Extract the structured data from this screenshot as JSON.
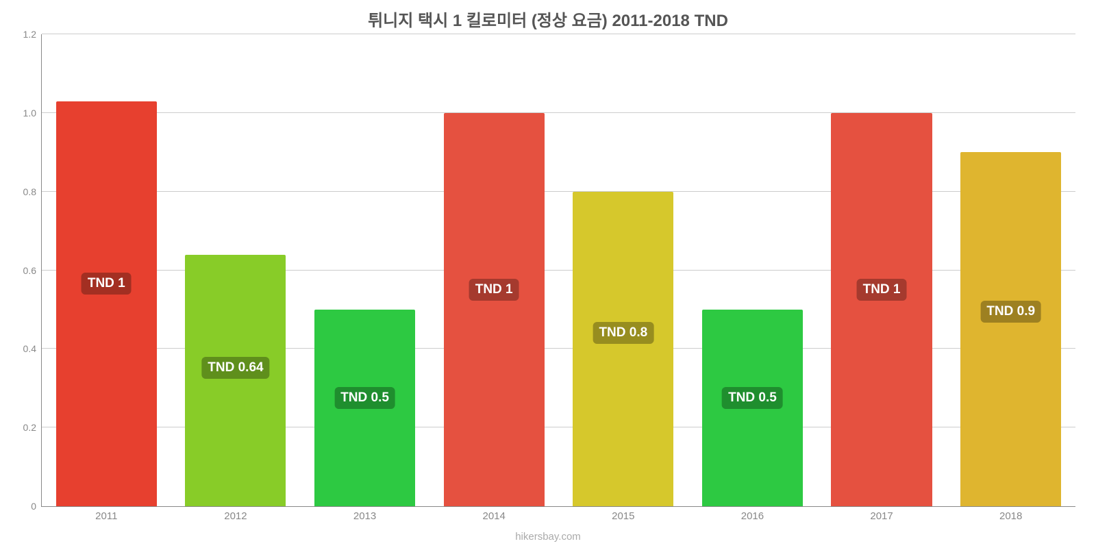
{
  "chart": {
    "type": "bar",
    "title": "튀니지 택시 1 킬로미터 (정상 요금) 2011-2018 TND",
    "title_fontsize": 24,
    "title_color": "#555555",
    "background_color": "#ffffff",
    "grid_color": "#cccccc",
    "axis_color": "#888888",
    "tick_fontsize": 14,
    "tick_color": "#888888",
    "ylim": [
      0,
      1.2
    ],
    "ytick_step": 0.2,
    "yticks": [
      {
        "v": 0,
        "label": "0"
      },
      {
        "v": 0.2,
        "label": "0.2"
      },
      {
        "v": 0.4,
        "label": "0.4"
      },
      {
        "v": 0.6,
        "label": "0.6"
      },
      {
        "v": 0.8,
        "label": "0.8"
      },
      {
        "v": 1.0,
        "label": "1.0"
      },
      {
        "v": 1.2,
        "label": "1.2"
      }
    ],
    "categories": [
      "2011",
      "2012",
      "2013",
      "2014",
      "2015",
      "2016",
      "2017",
      "2018"
    ],
    "values": [
      1.03,
      0.64,
      0.5,
      1.0,
      0.8,
      0.5,
      1.0,
      0.9
    ],
    "bar_colors": [
      "#e7402f",
      "#88cc28",
      "#2dc942",
      "#e55140",
      "#d6c82c",
      "#2dc942",
      "#e55140",
      "#dfb52f"
    ],
    "bar_labels": [
      "TND 1",
      "TND 0.64",
      "TND 0.5",
      "TND 1",
      "TND 0.8",
      "TND 0.5",
      "TND 1",
      "TND 0.9"
    ],
    "bar_label_bg": [
      "#a32f22",
      "#5f8f1c",
      "#1f8e2e",
      "#a53a2e",
      "#978d1f",
      "#1f8e2e",
      "#a53a2e",
      "#9d8021"
    ],
    "bar_label_fontsize": 19,
    "bar_width_ratio": 0.78,
    "credit": "hikersbay.com",
    "credit_color": "#aaaaaa"
  }
}
